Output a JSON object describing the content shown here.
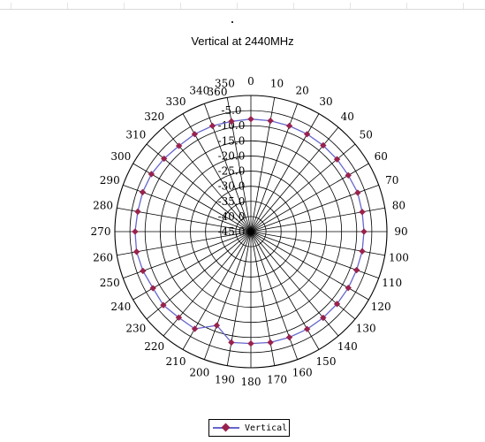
{
  "chart_data": {
    "type": "line",
    "subtype": "polar-radar",
    "title": "Vertical at 2440MHz",
    "angular_labels": [
      "0",
      "10",
      "20",
      "30",
      "40",
      "50",
      "60",
      "70",
      "80",
      "90",
      "100",
      "110",
      "120",
      "130",
      "140",
      "150",
      "160",
      "170",
      "180",
      "190",
      "200",
      "210",
      "220",
      "230",
      "240",
      "250",
      "260",
      "270",
      "280",
      "290",
      "300",
      "310",
      "320",
      "330",
      "340",
      "350",
      "360"
    ],
    "radial_labels": [
      "-5.0",
      "-10.0",
      "-15.0",
      "-20.0",
      "-25.0",
      "-30.0",
      "-35.0",
      "-40.0",
      "-45.0"
    ],
    "radial_range": [
      -45,
      0
    ],
    "grid": true,
    "legend_position": "bottom",
    "colors": {
      "line": "#6666cc",
      "marker": "#99224d",
      "grid": "#000000"
    },
    "series": [
      {
        "name": "Vertical",
        "angles": [
          0,
          10,
          20,
          30,
          40,
          50,
          60,
          70,
          80,
          90,
          100,
          110,
          120,
          130,
          140,
          150,
          160,
          170,
          180,
          190,
          200,
          210,
          220,
          230,
          240,
          250,
          260,
          270,
          280,
          290,
          300,
          310,
          320,
          330,
          340,
          350
        ],
        "values": [
          -7.8,
          -7.8,
          -7.8,
          -7.8,
          -7.8,
          -7.8,
          -7.8,
          -7.4,
          -7.6,
          -7.6,
          -7.6,
          -7.8,
          -7.8,
          -7.8,
          -7.8,
          -7.8,
          -7.8,
          -7.8,
          -8.0,
          -7.8,
          -12.0,
          -7.9,
          -7.9,
          -7.2,
          -7.6,
          -7.0,
          -6.6,
          -6.7,
          -7.0,
          -6.9,
          -7.0,
          -7.5,
          -8.0,
          -7.8,
          -7.8,
          -8.0
        ]
      }
    ]
  }
}
